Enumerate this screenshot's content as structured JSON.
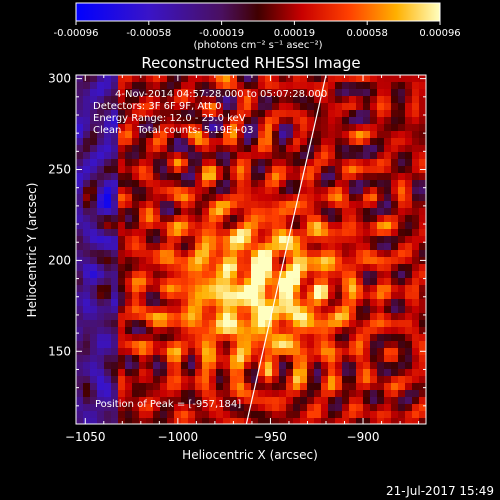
{
  "chart_data": {
    "type": "heatmap",
    "title": "Reconstructed RHESSI Image",
    "xlabel": "Heliocentric X (arcsec)",
    "ylabel": "Heliocentric Y (arcsec)",
    "xlim": [
      -1055,
      -866
    ],
    "ylim": [
      110,
      302
    ],
    "x_ticks": [
      -1050,
      -1000,
      -950,
      -900
    ],
    "y_ticks": [
      150,
      200,
      250,
      300
    ],
    "colorbar": {
      "label": "(photons cm⁻² s⁻¹ asec⁻²)",
      "range": [
        -0.00096,
        0.00096
      ],
      "ticks": [
        "-0.00096",
        "-0.00058",
        "-0.00019",
        "0.00019",
        "0.00058",
        "0.00096"
      ]
    },
    "annotations": [
      "4-Nov-2014 04:57:28.000 to 05:07:28.000",
      "Detectors: 3F 6F 9F, Att 0",
      "Energy Range: 12.0 - 25.0 keV",
      "Clean     Total counts: 5.19E+03"
    ],
    "peak_label": "Position of Peak = [-957,184]",
    "peak": [
      -957,
      184
    ],
    "limb_line": [
      [
        -963,
        110
      ],
      [
        -920,
        302
      ]
    ],
    "timestamp": "21-Jul-2017 15:49"
  }
}
